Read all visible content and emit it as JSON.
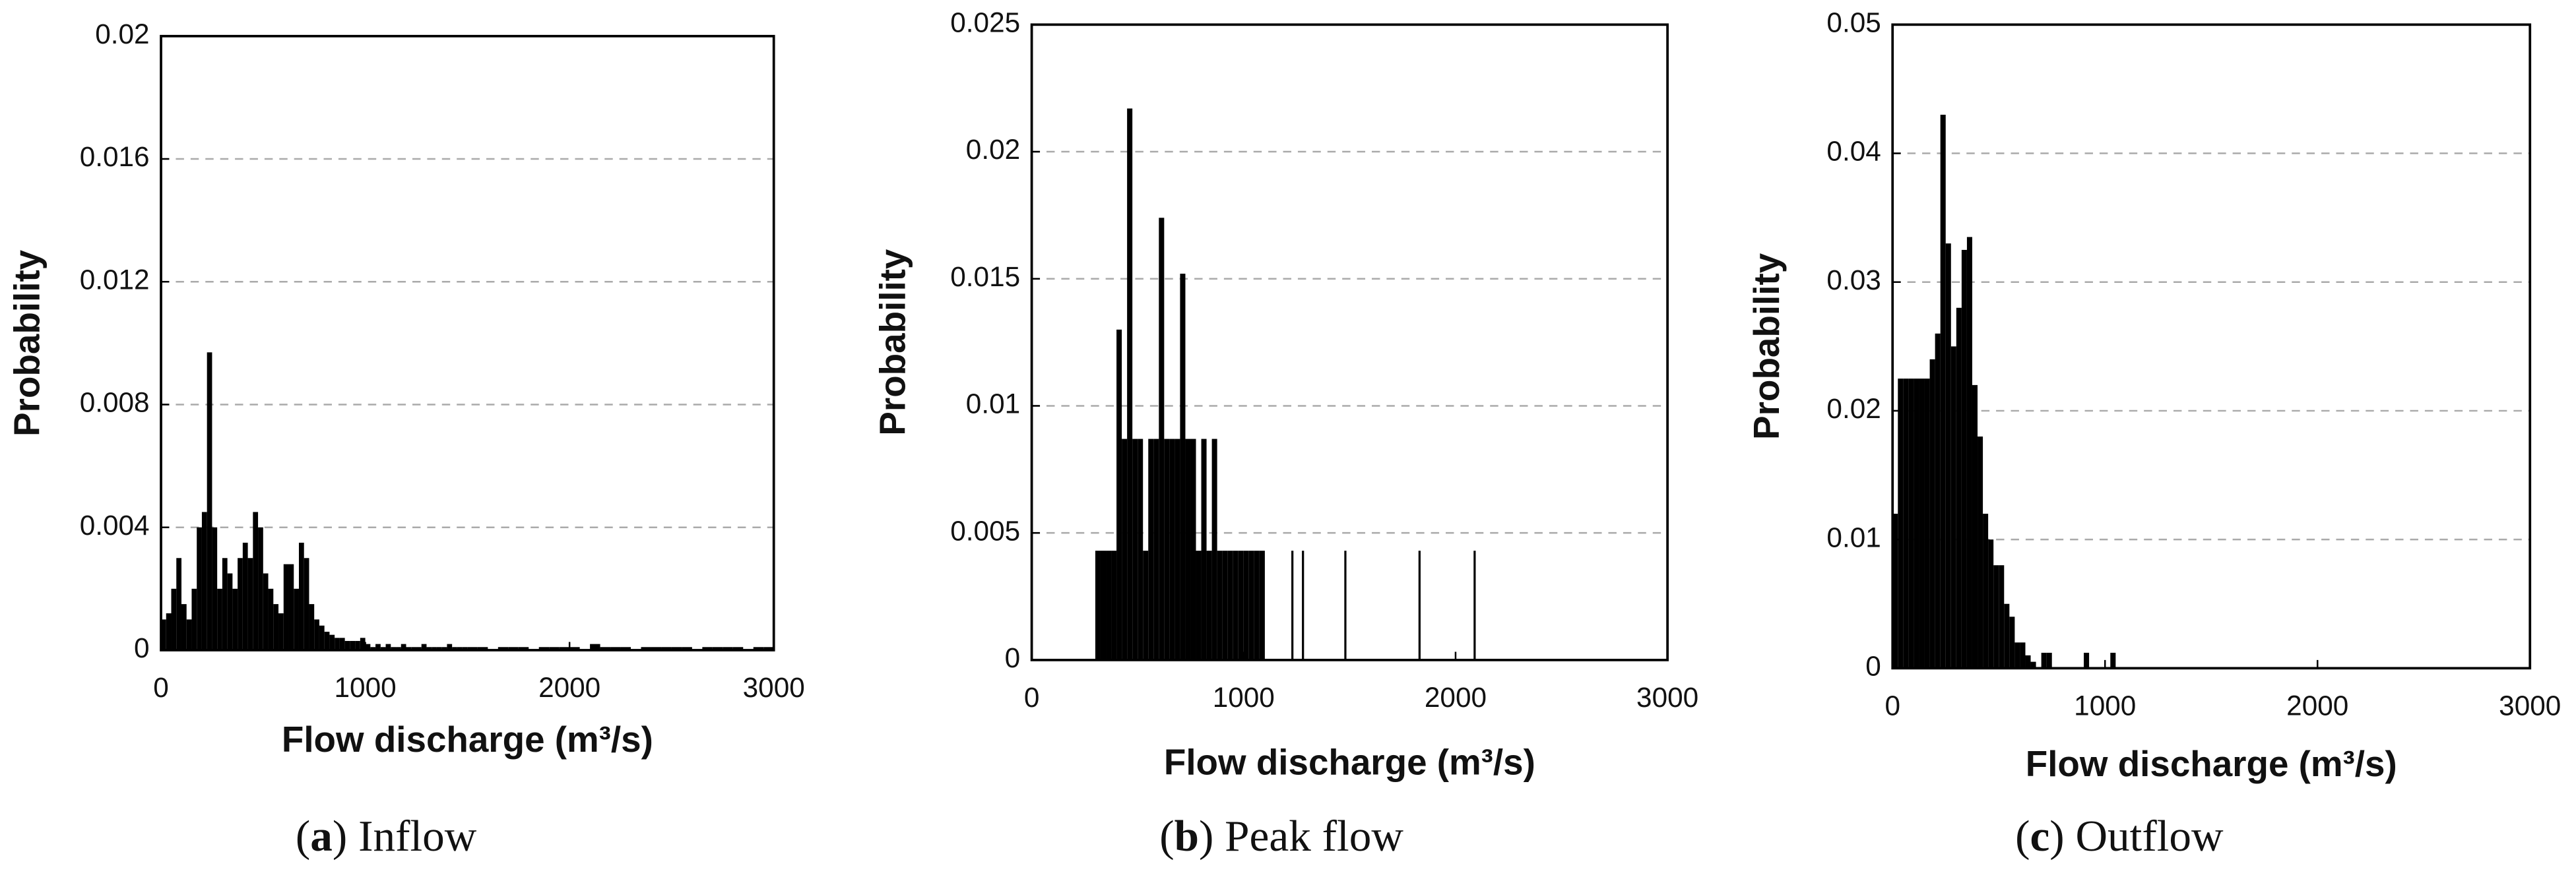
{
  "chart_data": [
    {
      "type": "histogram",
      "caption": [
        "(",
        "a",
        ") Inflow"
      ],
      "xlabel": "Flow discharge (m³/s)",
      "ylabel": "Probability",
      "color": "#000000",
      "grid": true,
      "xlim": [
        0,
        3000
      ],
      "xticks": [
        0,
        1000,
        2000,
        3000
      ],
      "ylim": [
        0,
        0.02
      ],
      "yticks": [
        0,
        0.004,
        0.008,
        0.012,
        0.016,
        0.02
      ],
      "bins": [
        0,
        25,
        50,
        75,
        100,
        125,
        150,
        175,
        200,
        225,
        250,
        275,
        300,
        325,
        350,
        375,
        400,
        425,
        450,
        475,
        500,
        525,
        550,
        575,
        600,
        625,
        650,
        675,
        700,
        725,
        750,
        775,
        800,
        825,
        850,
        875,
        900,
        925,
        950,
        975,
        1000,
        1025,
        1050,
        1075,
        1100,
        1125,
        1150,
        1175,
        1200,
        1225,
        1250,
        1275,
        1300,
        1325,
        1350,
        1375,
        1400,
        1425,
        1450,
        1475,
        1500,
        1550,
        1600,
        1650,
        1700,
        1750,
        1800,
        1850,
        1900,
        1950,
        2000,
        2050,
        2100,
        2150,
        2200,
        2250,
        2300,
        2350,
        2400,
        2450,
        2500,
        2550,
        2600,
        2650,
        2700,
        2750,
        2800,
        2850,
        2900,
        2950,
        3000
      ],
      "values": [
        0.001,
        0.0012,
        0.002,
        0.003,
        0.0015,
        0.001,
        0.002,
        0.004,
        0.0045,
        0.0097,
        0.004,
        0.002,
        0.003,
        0.0025,
        0.002,
        0.003,
        0.0035,
        0.003,
        0.0045,
        0.004,
        0.0025,
        0.002,
        0.0015,
        0.0012,
        0.0028,
        0.0028,
        0.002,
        0.0035,
        0.003,
        0.0015,
        0.001,
        0.0008,
        0.0006,
        0.0005,
        0.0004,
        0.0004,
        0.0003,
        0.0003,
        0.0003,
        0.0004,
        0.0002,
        0.0001,
        0.0002,
        0.0001,
        0.0002,
        0.0001,
        0.0001,
        0.0002,
        0.0001,
        0.0001,
        0.0001,
        0.0002,
        0.0001,
        0.0001,
        0.0001,
        0.0001,
        0.0002,
        0.0001,
        0.0001,
        0.0001,
        0.0001,
        0.0001,
        0,
        0.0001,
        0.0001,
        0.0001,
        0,
        0.0001,
        0.0001,
        0.0001,
        0.0001,
        0,
        0.0002,
        0.0001,
        0.0001,
        0.0001,
        0,
        0.0001,
        0.0001,
        0.0001,
        0.0001,
        0.0001,
        0,
        0.0001,
        0.0001,
        0.0001,
        0.0001,
        0,
        0.0001,
        0.0001
      ]
    },
    {
      "type": "histogram",
      "caption": [
        "(",
        "b",
        ") Peak flow"
      ],
      "xlabel": "Flow discharge (m³/s)",
      "ylabel": "Probability",
      "color": "#000000",
      "grid": true,
      "xlim": [
        0,
        3000
      ],
      "xticks": [
        0,
        1000,
        2000,
        3000
      ],
      "ylim": [
        0,
        0.025
      ],
      "yticks": [
        0,
        0.005,
        0.01,
        0.015,
        0.02,
        0.025
      ],
      "bins": [
        300,
        325,
        350,
        375,
        400,
        425,
        450,
        475,
        500,
        525,
        550,
        575,
        600,
        625,
        650,
        675,
        700,
        725,
        750,
        775,
        800,
        825,
        850,
        875,
        900,
        925,
        950,
        975,
        1000,
        1025,
        1050,
        1075,
        1100,
        1225,
        1235,
        1275,
        1285,
        1475,
        1485,
        1825,
        1835,
        2085,
        2095
      ],
      "values": [
        0.0043,
        0.0043,
        0.0043,
        0.0043,
        0.013,
        0.0087,
        0.0217,
        0.0087,
        0.0087,
        0.0043,
        0.0087,
        0.0087,
        0.0174,
        0.0087,
        0.0087,
        0.0087,
        0.0152,
        0.0087,
        0.0087,
        0.0043,
        0.0087,
        0.0043,
        0.0087,
        0.0043,
        0.0043,
        0.0043,
        0.0043,
        0.0043,
        0.0043,
        0.0043,
        0.0043,
        0.0043,
        0,
        0.0043,
        0,
        0.0043,
        0,
        0.0043,
        0,
        0.0043,
        0,
        0.0043
      ]
    },
    {
      "type": "histogram",
      "caption": [
        "(",
        "c",
        ") Outflow"
      ],
      "xlabel": "Flow discharge (m³/s)",
      "ylabel": "Probability",
      "color": "#000000",
      "grid": true,
      "xlim": [
        0,
        3000
      ],
      "xticks": [
        0,
        1000,
        2000,
        3000
      ],
      "ylim": [
        0,
        0.05
      ],
      "yticks": [
        0,
        0.01,
        0.02,
        0.03,
        0.04,
        0.05
      ],
      "bins": [
        0,
        25,
        50,
        75,
        100,
        125,
        150,
        175,
        200,
        225,
        250,
        275,
        300,
        325,
        350,
        375,
        400,
        425,
        450,
        475,
        500,
        525,
        550,
        575,
        600,
        625,
        650,
        675,
        700,
        725,
        750,
        775,
        800,
        825,
        850,
        875,
        900,
        925,
        950,
        975,
        1000,
        1025,
        1050,
        1075
      ],
      "values": [
        0.012,
        0.0225,
        0.0225,
        0.0225,
        0.0225,
        0.0225,
        0.0225,
        0.024,
        0.026,
        0.043,
        0.033,
        0.025,
        0.028,
        0.0325,
        0.0335,
        0.022,
        0.018,
        0.012,
        0.01,
        0.008,
        0.008,
        0.005,
        0.004,
        0.002,
        0.002,
        0.001,
        0.0005,
        0,
        0.0012,
        0.0012,
        0,
        0,
        0,
        0,
        0,
        0,
        0.0012,
        0,
        0,
        0,
        0,
        0.0012,
        0
      ]
    }
  ]
}
